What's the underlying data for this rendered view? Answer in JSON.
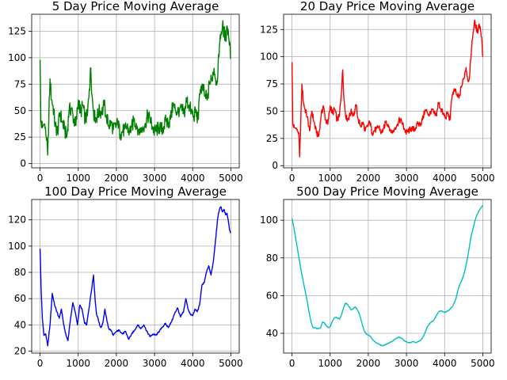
{
  "chart_data": [
    {
      "type": "line",
      "title": "5 Day Price Moving Average",
      "xlabel": "",
      "ylabel": "",
      "xlim": [
        -220,
        5220
      ],
      "ylim": [
        -4,
        141
      ],
      "xticks": [
        0,
        1000,
        2000,
        3000,
        4000,
        5000
      ],
      "yticks": [
        0,
        25,
        50,
        75,
        100,
        125
      ],
      "grid": true,
      "color": "#008000",
      "noise": 7,
      "x": [
        0,
        20,
        60,
        100,
        140,
        170,
        200,
        230,
        260,
        300,
        340,
        400,
        460,
        520,
        580,
        640,
        700,
        760,
        820,
        880,
        940,
        1000,
        1060,
        1120,
        1180,
        1240,
        1290,
        1330,
        1360,
        1400,
        1440,
        1500,
        1560,
        1620,
        1680,
        1740,
        1800,
        1860,
        1920,
        1980,
        2040,
        2100,
        2160,
        2220,
        2280,
        2340,
        2400,
        2460,
        2520,
        2580,
        2640,
        2700,
        2760,
        2820,
        2880,
        2940,
        3000,
        3060,
        3120,
        3180,
        3240,
        3300,
        3360,
        3420,
        3480,
        3540,
        3600,
        3660,
        3720,
        3780,
        3840,
        3900,
        3960,
        4020,
        4080,
        4140,
        4200,
        4260,
        4320,
        4380,
        4440,
        4500,
        4560,
        4620,
        4660,
        4700,
        4740,
        4780,
        4820,
        4860,
        4900,
        4940,
        4970,
        5000
      ],
      "y": [
        98,
        40,
        34,
        37,
        34,
        22,
        8,
        45,
        80,
        60,
        55,
        35,
        30,
        48,
        40,
        32,
        25,
        50,
        52,
        42,
        36,
        60,
        48,
        55,
        42,
        45,
        70,
        90,
        65,
        50,
        42,
        45,
        50,
        48,
        55,
        45,
        35,
        40,
        32,
        35,
        38,
        28,
        30,
        33,
        35,
        30,
        35,
        40,
        38,
        32,
        30,
        35,
        38,
        45,
        42,
        35,
        30,
        32,
        34,
        32,
        35,
        40,
        38,
        42,
        55,
        52,
        48,
        52,
        50,
        48,
        60,
        55,
        50,
        45,
        48,
        42,
        70,
        72,
        65,
        60,
        75,
        80,
        90,
        78,
        85,
        110,
        122,
        130,
        125,
        118,
        130,
        120,
        115,
        100
      ]
    },
    {
      "type": "line",
      "title": "20 Day Price Moving Average",
      "xlabel": "",
      "ylabel": "",
      "xlim": [
        -220,
        5220
      ],
      "ylim": [
        -2,
        139
      ],
      "xticks": [
        0,
        1000,
        2000,
        3000,
        4000,
        5000
      ],
      "yticks": [
        0,
        25,
        50,
        75,
        100,
        125
      ],
      "grid": true,
      "color": "#ff0000",
      "noise": 3,
      "x": [
        0,
        20,
        60,
        100,
        140,
        180,
        200,
        230,
        260,
        300,
        340,
        400,
        460,
        520,
        580,
        640,
        700,
        760,
        820,
        880,
        940,
        1000,
        1060,
        1120,
        1180,
        1240,
        1290,
        1330,
        1360,
        1400,
        1440,
        1500,
        1560,
        1620,
        1680,
        1740,
        1800,
        1860,
        1920,
        1980,
        2040,
        2100,
        2160,
        2220,
        2280,
        2340,
        2400,
        2460,
        2520,
        2580,
        2640,
        2700,
        2760,
        2820,
        2880,
        2940,
        3000,
        3060,
        3120,
        3180,
        3240,
        3300,
        3360,
        3420,
        3480,
        3540,
        3600,
        3660,
        3720,
        3780,
        3840,
        3900,
        3960,
        4020,
        4080,
        4140,
        4200,
        4260,
        4320,
        4380,
        4440,
        4500,
        4560,
        4620,
        4660,
        4700,
        4740,
        4780,
        4820,
        4860,
        4900,
        4940,
        4970,
        5000
      ],
      "y": [
        95,
        38,
        35,
        34,
        33,
        30,
        8,
        40,
        75,
        58,
        52,
        45,
        32,
        50,
        40,
        30,
        27,
        45,
        55,
        42,
        38,
        55,
        48,
        52,
        42,
        45,
        65,
        88,
        62,
        48,
        42,
        45,
        50,
        46,
        55,
        42,
        36,
        40,
        32,
        36,
        40,
        30,
        32,
        34,
        36,
        30,
        34,
        40,
        38,
        33,
        30,
        35,
        38,
        42,
        40,
        34,
        30,
        32,
        34,
        33,
        35,
        38,
        38,
        42,
        50,
        50,
        46,
        52,
        48,
        46,
        58,
        52,
        48,
        44,
        48,
        42,
        65,
        70,
        65,
        62,
        72,
        80,
        90,
        78,
        84,
        105,
        120,
        132,
        128,
        122,
        130,
        125,
        118,
        100
      ]
    },
    {
      "type": "line",
      "title": "100 Day Price Moving Average",
      "xlabel": "",
      "ylabel": "",
      "xlim": [
        -220,
        5220
      ],
      "ylim": [
        18.5,
        135.5
      ],
      "xticks": [
        0,
        1000,
        2000,
        3000,
        4000,
        5000
      ],
      "yticks": [
        20,
        40,
        60,
        80,
        100,
        120
      ],
      "grid": true,
      "color": "#0000ff",
      "noise": 0.6,
      "x": [
        0,
        30,
        60,
        100,
        150,
        200,
        260,
        320,
        380,
        440,
        500,
        560,
        620,
        680,
        730,
        800,
        860,
        920,
        980,
        1040,
        1100,
        1160,
        1220,
        1280,
        1340,
        1400,
        1440,
        1480,
        1520,
        1560,
        1600,
        1650,
        1700,
        1760,
        1800,
        1860,
        1920,
        2000,
        2080,
        2160,
        2240,
        2320,
        2400,
        2480,
        2560,
        2640,
        2720,
        2800,
        2880,
        2960,
        3040,
        3120,
        3200,
        3280,
        3360,
        3440,
        3520,
        3600,
        3680,
        3760,
        3820,
        3880,
        3940,
        4000,
        4060,
        4120,
        4180,
        4240,
        4300,
        4360,
        4420,
        4480,
        4540,
        4600,
        4650,
        4700,
        4740,
        4780,
        4820,
        4860,
        4900,
        4940,
        4970,
        5000
      ],
      "y": [
        98,
        65,
        45,
        32,
        33,
        24,
        40,
        64,
        55,
        50,
        45,
        52,
        40,
        32,
        28,
        45,
        57,
        50,
        40,
        55,
        52,
        42,
        40,
        52,
        65,
        78,
        60,
        48,
        45,
        40,
        38,
        42,
        52,
        42,
        37,
        36,
        32,
        35,
        36,
        33,
        35,
        29,
        33,
        36,
        40,
        37,
        40,
        35,
        31,
        33,
        32,
        35,
        38,
        41,
        38,
        42,
        48,
        53,
        46,
        50,
        60,
        52,
        48,
        47,
        52,
        50,
        55,
        70,
        72,
        80,
        85,
        78,
        88,
        105,
        120,
        128,
        130,
        126,
        128,
        124,
        125,
        118,
        112,
        110
      ]
    },
    {
      "type": "line",
      "title": "500 Day Price Moving Average",
      "xlabel": "",
      "ylabel": "",
      "xlim": [
        -220,
        5220
      ],
      "ylim": [
        29.5,
        111
      ],
      "xticks": [
        0,
        1000,
        2000,
        3000,
        4000,
        5000
      ],
      "yticks": [
        40,
        60,
        80,
        100
      ],
      "grid": true,
      "color": "#00bfbf",
      "noise": 0.15,
      "x": [
        0,
        50,
        100,
        150,
        200,
        250,
        300,
        350,
        400,
        450,
        500,
        550,
        600,
        650,
        700,
        750,
        800,
        850,
        900,
        950,
        1000,
        1050,
        1100,
        1150,
        1200,
        1250,
        1300,
        1350,
        1400,
        1450,
        1500,
        1550,
        1600,
        1650,
        1700,
        1750,
        1800,
        1850,
        1900,
        1950,
        2000,
        2050,
        2100,
        2150,
        2200,
        2250,
        2300,
        2350,
        2400,
        2450,
        2500,
        2550,
        2600,
        2650,
        2700,
        2750,
        2800,
        2850,
        2900,
        2950,
        3000,
        3050,
        3100,
        3150,
        3200,
        3250,
        3300,
        3350,
        3400,
        3450,
        3500,
        3550,
        3600,
        3650,
        3700,
        3750,
        3800,
        3850,
        3900,
        3950,
        4000,
        4050,
        4100,
        4150,
        4200,
        4250,
        4300,
        4350,
        4400,
        4450,
        4500,
        4550,
        4600,
        4650,
        4700,
        4750,
        4800,
        4850,
        4900,
        4950,
        5000
      ],
      "y": [
        101,
        96,
        90,
        84,
        78,
        72,
        67,
        62,
        57,
        51,
        46,
        43,
        43,
        42.5,
        42.5,
        43,
        46,
        45.5,
        44,
        43,
        43.5,
        46,
        48,
        48.5,
        48,
        47.5,
        50,
        53.5,
        56,
        55.5,
        54,
        52.5,
        53,
        54,
        53,
        51,
        48,
        44,
        41,
        39.5,
        39,
        38.5,
        37,
        36,
        35,
        34.5,
        34,
        33.5,
        33.5,
        34,
        34.5,
        35,
        35.5,
        36,
        37,
        37.5,
        38,
        37.5,
        37,
        36,
        35.5,
        35,
        35,
        35.5,
        35.5,
        35,
        35.5,
        36,
        37,
        38.5,
        41,
        43.5,
        45,
        46,
        46.5,
        48,
        50,
        51.5,
        52,
        51.5,
        51,
        51.5,
        52,
        53,
        54,
        56,
        58.5,
        63,
        66,
        68,
        71,
        75,
        80,
        86,
        92,
        96,
        100,
        103,
        105,
        106.5,
        108
      ]
    }
  ]
}
